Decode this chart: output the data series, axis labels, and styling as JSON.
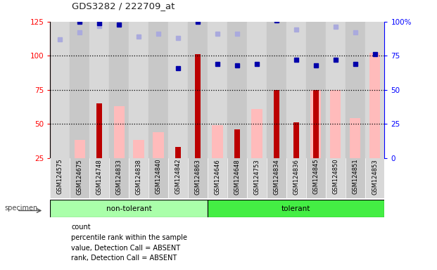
{
  "title": "GDS3282 / 222709_at",
  "samples": [
    "GSM124575",
    "GSM124675",
    "GSM124748",
    "GSM124833",
    "GSM124838",
    "GSM124840",
    "GSM124842",
    "GSM124863",
    "GSM124646",
    "GSM124648",
    "GSM124753",
    "GSM124834",
    "GSM124836",
    "GSM124845",
    "GSM124850",
    "GSM124851",
    "GSM124853"
  ],
  "non_tolerant_count": 8,
  "tolerant_count": 9,
  "count_red": [
    null,
    null,
    65,
    null,
    null,
    null,
    33,
    101,
    null,
    46,
    null,
    75,
    51,
    75,
    null,
    null,
    null
  ],
  "percentile_blue": [
    null,
    100,
    99,
    98,
    null,
    null,
    66,
    100,
    69,
    68,
    69,
    101,
    72,
    68,
    72,
    69,
    76
  ],
  "value_absent_pink": [
    null,
    38,
    null,
    63,
    38,
    44,
    null,
    25,
    49,
    null,
    61,
    null,
    null,
    75,
    75,
    54,
    102
  ],
  "rank_absent_lavender": [
    87,
    92,
    97,
    null,
    89,
    91,
    88,
    null,
    91,
    91,
    null,
    null,
    94,
    null,
    96,
    92,
    null
  ],
  "ylim_left": [
    25,
    125
  ],
  "ylim_right": [
    0,
    100
  ],
  "left_ticks": [
    25,
    50,
    75,
    100,
    125
  ],
  "right_ticks": [
    0,
    25,
    50,
    75,
    100
  ],
  "right_tick_labels": [
    "0",
    "25",
    "50",
    "75",
    "100%"
  ],
  "hlines": [
    50,
    75,
    100
  ],
  "colors": {
    "count_red": "#bb0000",
    "percentile_blue": "#0000aa",
    "value_absent_pink": "#ffbbbb",
    "rank_absent_lavender": "#aaaadd",
    "non_tolerant_bg": "#aaffaa",
    "tolerant_bg": "#44ee44",
    "plot_bg": "#cccccc",
    "col_bg": "#c8c8c8"
  },
  "legend": [
    {
      "label": "count",
      "color": "#bb0000"
    },
    {
      "label": "percentile rank within the sample",
      "color": "#0000aa"
    },
    {
      "label": "value, Detection Call = ABSENT",
      "color": "#ffbbbb"
    },
    {
      "label": "rank, Detection Call = ABSENT",
      "color": "#aaaadd"
    }
  ]
}
